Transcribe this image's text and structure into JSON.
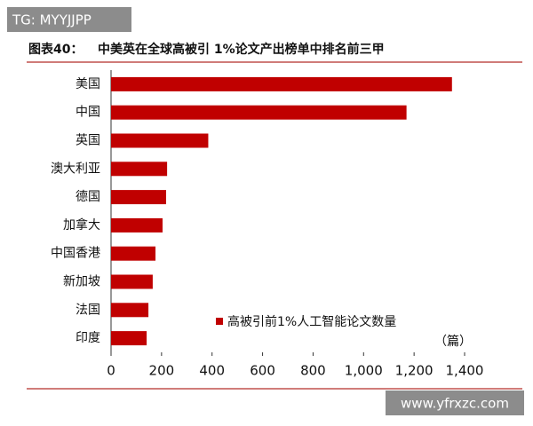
{
  "watermark": "TG: MYYJJPP",
  "site_watermark": "www.yfrxzc.com",
  "chart_data": {
    "type": "hbar",
    "title_label": "图表40：",
    "title": "中美英在全球高被引 1%论文产出榜单中排名前三甲",
    "categories": [
      "美国",
      "中国",
      "英国",
      "澳大利亚",
      "德国",
      "加拿大",
      "中国香港",
      "新加坡",
      "法国",
      "印度"
    ],
    "series": [
      {
        "name": "高被引前1%人工智能论文数量",
        "color": "#c00000",
        "values": [
          1350,
          1170,
          385,
          222,
          218,
          204,
          176,
          165,
          148,
          141
        ]
      }
    ],
    "x_unit": "（篇）",
    "xlim": [
      0,
      1400
    ],
    "xticks": [
      0,
      200,
      400,
      600,
      800,
      {
        "value": 1000,
        "label": "1,000"
      },
      {
        "value": 1200,
        "label": "1,200"
      },
      {
        "value": 1400,
        "label": "1,400"
      }
    ],
    "grid": false
  }
}
